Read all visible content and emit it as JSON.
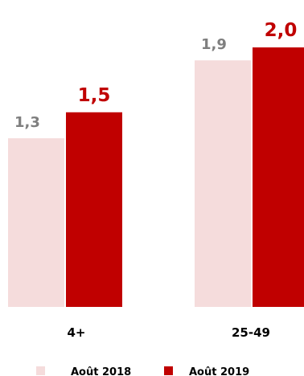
{
  "chart_data": {
    "type": "bar",
    "categories": [
      "4+",
      "25-49"
    ],
    "series": [
      {
        "name": "Août 2018",
        "values": [
          1.3,
          1.9
        ],
        "labels": [
          "1,3",
          "1,9"
        ],
        "color": "#f5dcdc",
        "label_color": "#7f7f7f"
      },
      {
        "name": "Août 2019",
        "values": [
          1.5,
          2.0
        ],
        "labels": [
          "1,5",
          "2,0"
        ],
        "color": "#c00000",
        "label_color": "#c00000"
      }
    ],
    "ylim": [
      0,
      2.2
    ],
    "grid": false,
    "legend_position": "bottom"
  }
}
